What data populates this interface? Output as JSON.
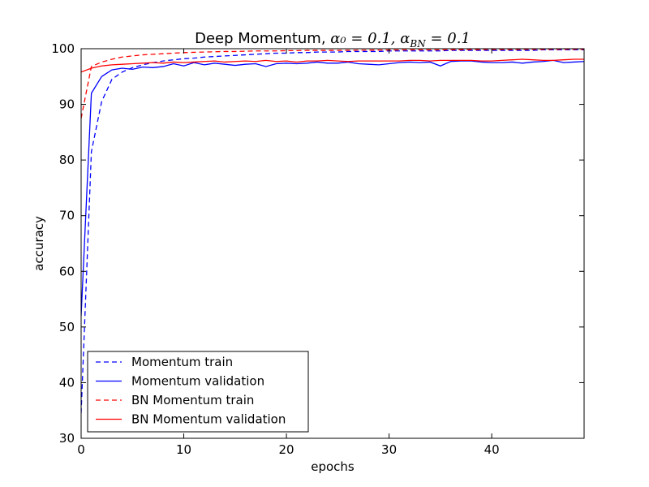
{
  "chart_data": {
    "type": "line",
    "title": {
      "main": "Deep Momentum, ",
      "formula": "α₀ = 0.1,  α",
      "formula_sub": "BN",
      "formula_tail": " = 0.1"
    },
    "xlabel": "epochs",
    "ylabel": "accuracy",
    "xlim": [
      0,
      49
    ],
    "ylim": [
      30,
      100
    ],
    "xticks": [
      0,
      10,
      20,
      30,
      40
    ],
    "yticks": [
      30,
      40,
      50,
      60,
      70,
      80,
      90,
      100
    ],
    "grid": false,
    "legend_position": "lower-left",
    "x": [
      0,
      1,
      2,
      3,
      4,
      5,
      6,
      7,
      8,
      9,
      10,
      11,
      12,
      13,
      14,
      15,
      16,
      17,
      18,
      19,
      20,
      21,
      22,
      23,
      24,
      25,
      26,
      27,
      28,
      29,
      30,
      31,
      32,
      33,
      34,
      35,
      36,
      37,
      38,
      39,
      40,
      41,
      42,
      43,
      44,
      45,
      46,
      47,
      48,
      49
    ],
    "series": [
      {
        "name": "Momentum train",
        "color": "#0000ff",
        "style": "dashed",
        "values": [
          34.5,
          81.5,
          90.5,
          94.5,
          95.8,
          96.6,
          97.1,
          97.5,
          97.8,
          98.0,
          98.2,
          98.3,
          98.5,
          98.6,
          98.7,
          98.8,
          98.9,
          99.0,
          99.1,
          99.2,
          99.2,
          99.3,
          99.3,
          99.4,
          99.4,
          99.4,
          99.5,
          99.5,
          99.5,
          99.5,
          99.6,
          99.6,
          99.6,
          99.6,
          99.6,
          99.6,
          99.7,
          99.7,
          99.7,
          99.7,
          99.7,
          99.7,
          99.7,
          99.7,
          99.7,
          99.8,
          99.8,
          99.8,
          99.8,
          99.8
        ]
      },
      {
        "name": "Momentum validation",
        "color": "#0000ff",
        "style": "solid",
        "values": [
          52.0,
          92.0,
          95.0,
          96.2,
          96.5,
          96.3,
          96.7,
          96.6,
          96.8,
          97.3,
          96.9,
          97.5,
          97.1,
          97.4,
          97.2,
          97.0,
          97.2,
          97.3,
          96.8,
          97.3,
          97.4,
          97.3,
          97.4,
          97.6,
          97.4,
          97.4,
          97.6,
          97.3,
          97.2,
          97.1,
          97.3,
          97.5,
          97.6,
          97.5,
          97.6,
          96.9,
          97.7,
          97.8,
          97.8,
          97.6,
          97.5,
          97.5,
          97.6,
          97.4,
          97.6,
          97.7,
          97.9,
          97.5,
          97.6,
          97.7
        ]
      },
      {
        "name": "BN Momentum train",
        "color": "#ff0000",
        "style": "dashed",
        "values": [
          87.5,
          96.8,
          97.6,
          98.1,
          98.5,
          98.7,
          98.9,
          99.0,
          99.1,
          99.2,
          99.3,
          99.35,
          99.4,
          99.45,
          99.5,
          99.5,
          99.55,
          99.6,
          99.6,
          99.6,
          99.65,
          99.65,
          99.7,
          99.7,
          99.7,
          99.7,
          99.72,
          99.74,
          99.75,
          99.76,
          99.77,
          99.78,
          99.79,
          99.8,
          99.8,
          99.8,
          99.82,
          99.83,
          99.84,
          99.85,
          99.85,
          99.86,
          99.86,
          99.87,
          99.88,
          99.88,
          99.89,
          99.89,
          99.9,
          99.9
        ]
      },
      {
        "name": "BN Momentum validation",
        "color": "#ff0000",
        "style": "solid",
        "values": [
          95.8,
          96.5,
          96.9,
          97.1,
          97.2,
          97.3,
          97.4,
          97.5,
          97.4,
          97.6,
          97.5,
          97.6,
          97.7,
          97.8,
          97.6,
          97.7,
          97.8,
          97.7,
          97.9,
          97.7,
          97.8,
          97.6,
          97.8,
          97.8,
          97.9,
          97.8,
          97.7,
          97.8,
          97.8,
          97.8,
          97.8,
          97.8,
          97.9,
          97.9,
          97.8,
          97.9,
          97.9,
          97.9,
          97.9,
          97.8,
          97.8,
          97.9,
          98.0,
          98.1,
          98.0,
          97.9,
          97.9,
          98.0,
          98.1,
          98.1
        ]
      }
    ]
  }
}
